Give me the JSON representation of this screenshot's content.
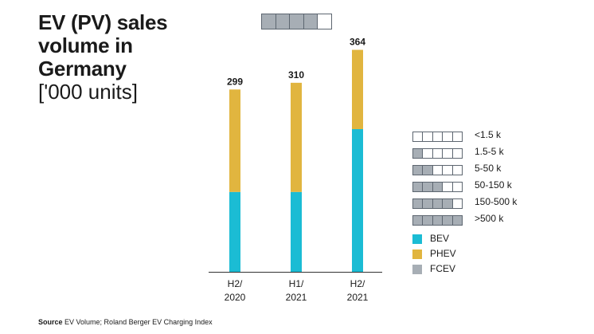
{
  "title": {
    "main": "EV (PV) sales\nvolume in\nGermany",
    "unit": "['000 units]"
  },
  "top_indicator": {
    "filled": 4,
    "total": 5
  },
  "chart_data": {
    "type": "bar",
    "stacked": true,
    "categories": [
      "H2/\n2020",
      "H1/\n2021",
      "H2/\n2021"
    ],
    "series": [
      {
        "name": "BEV",
        "values": [
          131,
          131,
          234
        ],
        "color": "#1bbcd4"
      },
      {
        "name": "PHEV",
        "values": [
          168,
          179,
          130
        ],
        "color": "#e1b53f"
      },
      {
        "name": "FCEV",
        "values": [
          0,
          0,
          0
        ],
        "color": "#a7aeb5"
      }
    ],
    "totals": [
      "299",
      "310",
      "364"
    ],
    "ylim": [
      0,
      400
    ],
    "grid": false,
    "legend_position": "right"
  },
  "range_legend": [
    {
      "label": "<1.5 k",
      "filled": 0
    },
    {
      "label": "1.5-5 k",
      "filled": 1
    },
    {
      "label": "5-50 k",
      "filled": 2
    },
    {
      "label": "50-150 k",
      "filled": 3
    },
    {
      "label": "150-500 k",
      "filled": 4
    },
    {
      "label": ">500 k",
      "filled": 5
    }
  ],
  "source": {
    "prefix": "Source",
    "text": "EV Volume; Roland Berger EV Charging Index"
  }
}
